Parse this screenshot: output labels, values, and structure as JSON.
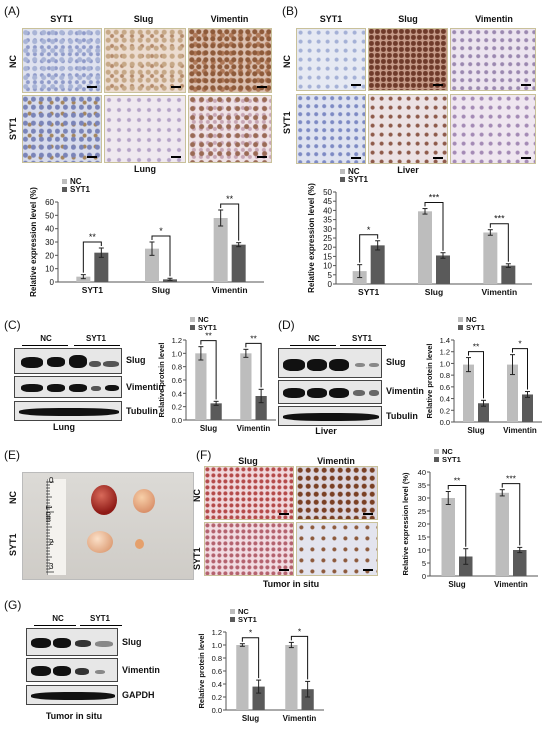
{
  "panels": {
    "A": {
      "label": "(A)",
      "columns": [
        "SYT1",
        "Slug",
        "Vimentin"
      ],
      "rows": [
        "NC",
        "SYT1"
      ],
      "caption": "Lung"
    },
    "B": {
      "label": "(B)",
      "columns": [
        "SYT1",
        "Slug",
        "Vimentin"
      ],
      "rows": [
        "NC",
        "SYT1"
      ],
      "caption": "Liver"
    },
    "C": {
      "label": "(C)",
      "groups": [
        "NC",
        "SYT1"
      ],
      "blots": [
        "Slug",
        "Vimentin",
        "Tubulin"
      ],
      "caption": "Lung"
    },
    "D": {
      "label": "(D)",
      "groups": [
        "NC",
        "SYT1"
      ],
      "blots": [
        "Slug",
        "Vimentin",
        "Tubulin"
      ],
      "caption": "Liver"
    },
    "E": {
      "label": "(E)",
      "rows": [
        "NC",
        "SYT1"
      ],
      "ruler_marks": [
        "0",
        "1 cm",
        "2",
        "3"
      ]
    },
    "F": {
      "label": "(F)",
      "columns": [
        "Slug",
        "Vimentin"
      ],
      "rows": [
        "NC",
        "SYT1"
      ],
      "caption": "Tumor in situ"
    },
    "G": {
      "label": "(G)",
      "groups": [
        "NC",
        "SYT1"
      ],
      "blots": [
        "Slug",
        "Vimentin",
        "GAPDH"
      ],
      "caption": "Tumor in situ"
    }
  },
  "colors": {
    "nc": "#bdbdbd",
    "syt1": "#5a5a5a",
    "tile_border": "#c9c19a"
  },
  "chart_data": [
    {
      "id": "A",
      "type": "bar",
      "categories": [
        "SYT1",
        "Slug",
        "Vimentin"
      ],
      "series": [
        {
          "name": "NC",
          "values": [
            4,
            25,
            48
          ],
          "errors": [
            1.5,
            5,
            6
          ]
        },
        {
          "name": "SYT1",
          "values": [
            22,
            2,
            28
          ],
          "errors": [
            3.5,
            0.8,
            1.5
          ]
        }
      ],
      "ylabel": "Relative expression level (%)",
      "ylim": [
        0,
        60
      ],
      "yticks": [
        0,
        10,
        20,
        30,
        40,
        50,
        60
      ],
      "significance": [
        "**",
        "*",
        "**"
      ],
      "legend": "top-left"
    },
    {
      "id": "B",
      "type": "bar",
      "categories": [
        "SYT1",
        "Slug",
        "Vimentin"
      ],
      "series": [
        {
          "name": "NC",
          "values": [
            7,
            39.5,
            28
          ],
          "errors": [
            3.5,
            1.5,
            1.5
          ]
        },
        {
          "name": "SYT1",
          "values": [
            21,
            15.5,
            10
          ],
          "errors": [
            2.5,
            1.5,
            1
          ]
        }
      ],
      "ylabel": "Relative expression level (%)",
      "ylim": [
        0,
        50
      ],
      "yticks": [
        0,
        5,
        10,
        15,
        20,
        25,
        30,
        35,
        40,
        45,
        50
      ],
      "significance": [
        "*",
        "***",
        "***"
      ],
      "legend": "top-left"
    },
    {
      "id": "C",
      "type": "bar",
      "categories": [
        "Slug",
        "Vimentin"
      ],
      "series": [
        {
          "name": "NC",
          "values": [
            1.0,
            1.0
          ],
          "errors": [
            0.1,
            0.06
          ]
        },
        {
          "name": "SYT1",
          "values": [
            0.25,
            0.36
          ],
          "errors": [
            0.03,
            0.1
          ]
        }
      ],
      "ylabel": "Relative protein level",
      "ylim": [
        0,
        1.2
      ],
      "yticks": [
        0,
        0.2,
        0.4,
        0.6,
        0.8,
        1.0,
        1.2
      ],
      "significance": [
        "**",
        "**"
      ],
      "legend": "top-left"
    },
    {
      "id": "D",
      "type": "bar",
      "categories": [
        "Slug",
        "Vimentin"
      ],
      "series": [
        {
          "name": "NC",
          "values": [
            0.98,
            0.98
          ],
          "errors": [
            0.12,
            0.17
          ]
        },
        {
          "name": "SYT1",
          "values": [
            0.32,
            0.47
          ],
          "errors": [
            0.05,
            0.05
          ]
        }
      ],
      "ylabel": "Relative protein level",
      "ylim": [
        0,
        1.4
      ],
      "yticks": [
        0,
        0.2,
        0.4,
        0.6,
        0.8,
        1.0,
        1.2,
        1.4
      ],
      "significance": [
        "**",
        "*"
      ],
      "legend": "top-left"
    },
    {
      "id": "F",
      "type": "bar",
      "categories": [
        "Slug",
        "Vimentin"
      ],
      "series": [
        {
          "name": "NC",
          "values": [
            30,
            32
          ],
          "errors": [
            2.5,
            1.2
          ]
        },
        {
          "name": "SYT1",
          "values": [
            7.5,
            10
          ],
          "errors": [
            3,
            1
          ]
        }
      ],
      "ylabel": "Relative expression level (%)",
      "ylim": [
        0,
        40
      ],
      "yticks": [
        0,
        5,
        10,
        15,
        20,
        25,
        30,
        35,
        40
      ],
      "significance": [
        "**",
        "***"
      ],
      "legend": "top-left"
    },
    {
      "id": "G",
      "type": "bar",
      "categories": [
        "Slug",
        "Vimentin"
      ],
      "series": [
        {
          "name": "NC",
          "values": [
            1.0,
            1.0
          ],
          "errors": [
            0.02,
            0.04
          ]
        },
        {
          "name": "SYT1",
          "values": [
            0.36,
            0.32
          ],
          "errors": [
            0.1,
            0.12
          ]
        }
      ],
      "ylabel": "Relative protein level",
      "ylim": [
        0,
        1.2
      ],
      "yticks": [
        0,
        0.2,
        0.4,
        0.6,
        0.8,
        1.0,
        1.2
      ],
      "significance": [
        "*",
        "*"
      ],
      "legend": "top-left"
    }
  ]
}
